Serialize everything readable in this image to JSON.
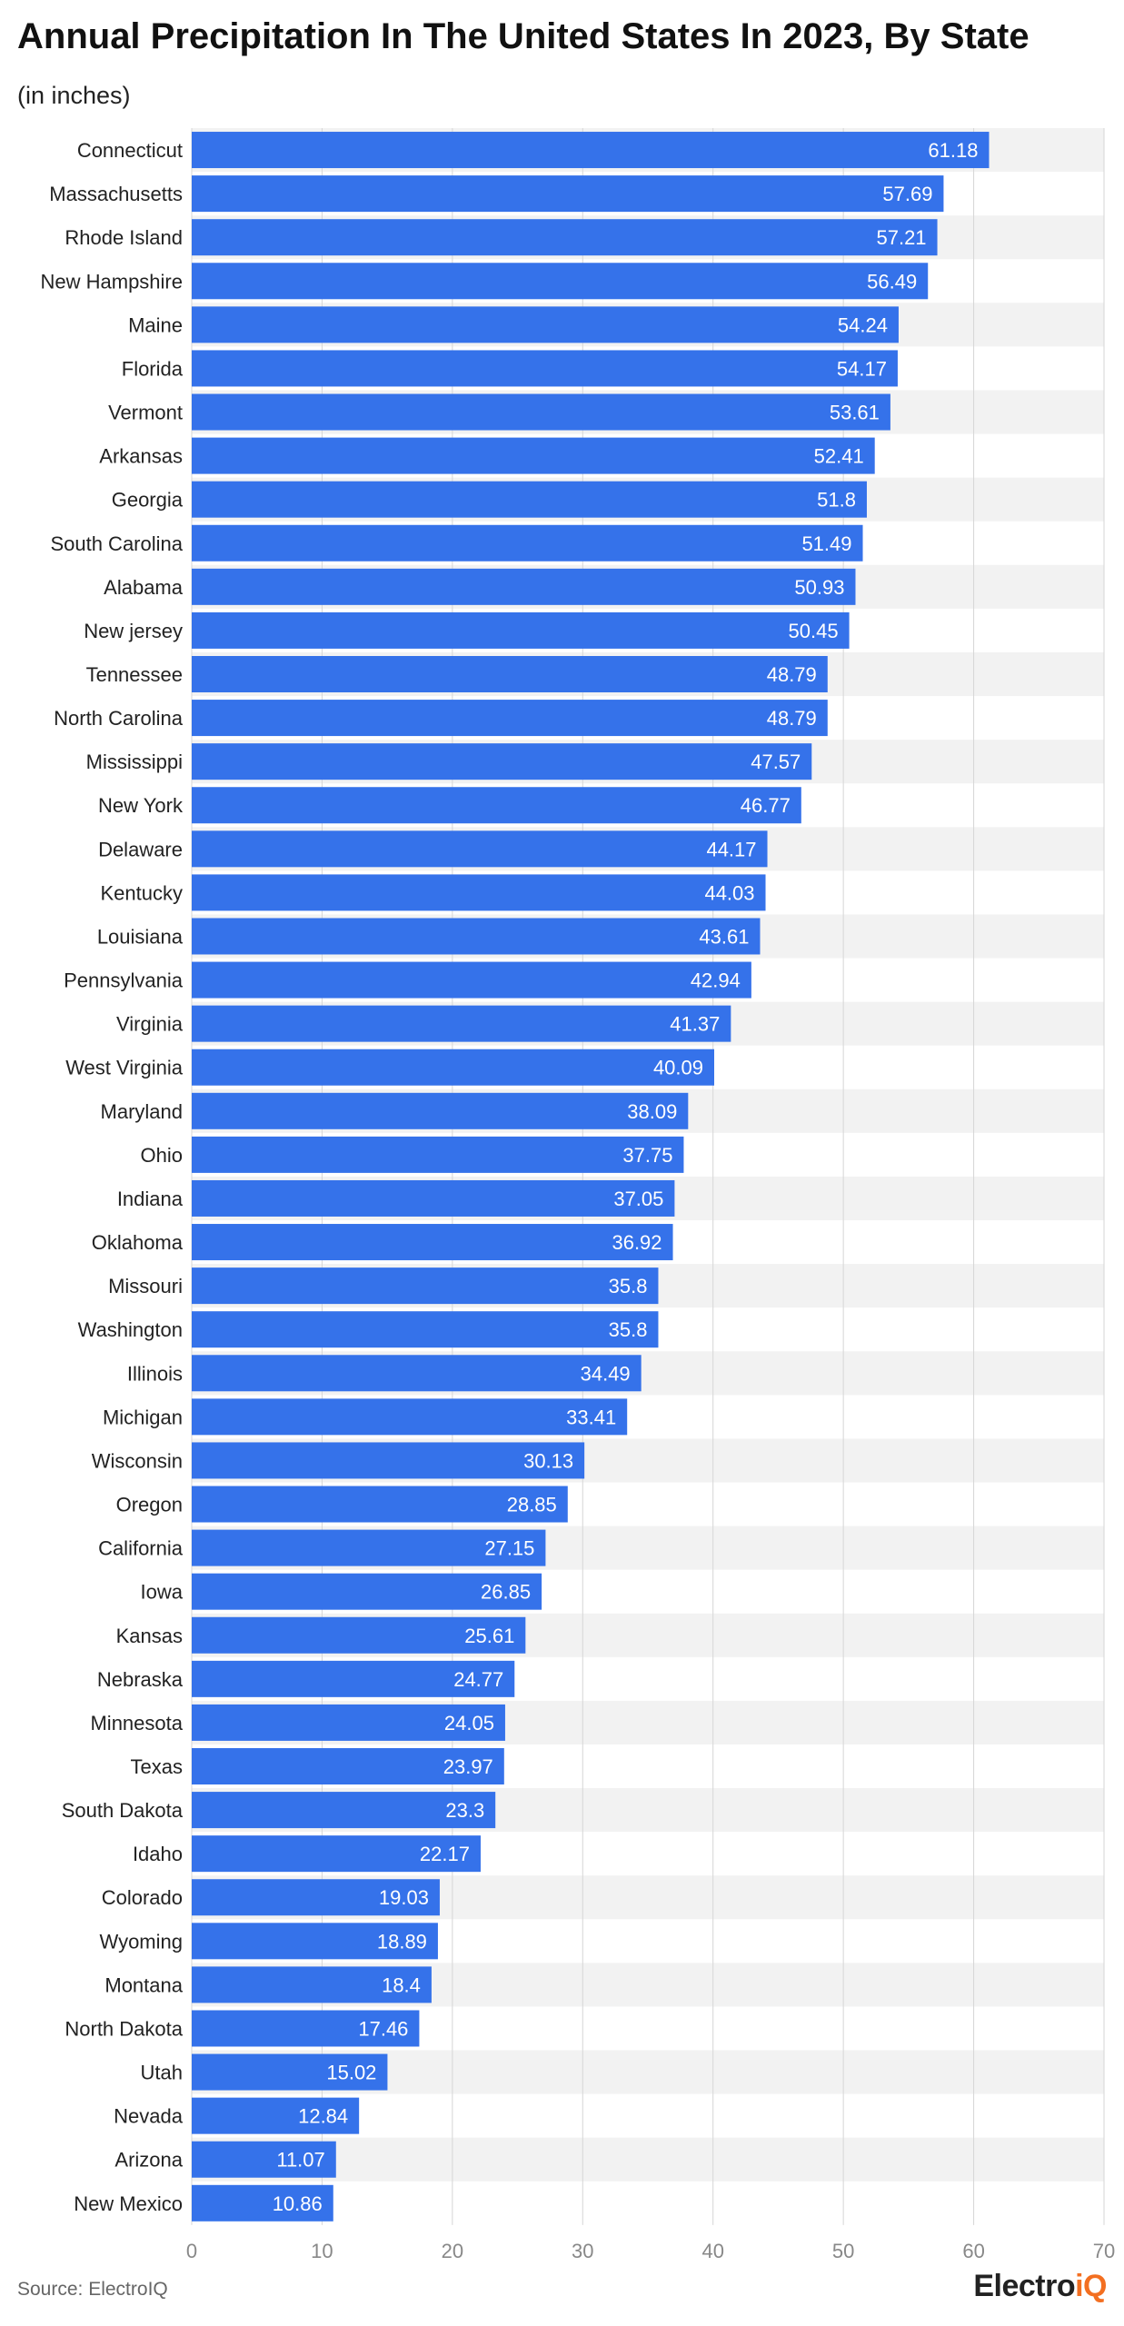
{
  "header": {
    "title": "Annual Precipitation In The United States In 2023, By State",
    "subtitle": "(in inches)"
  },
  "footer": {
    "source": "Source: ElectroIQ",
    "logo_main": "Electro",
    "logo_accent": "iQ"
  },
  "colors": {
    "bar": "#3572ea",
    "band": "#f2f2f2",
    "gridline": "#d6d6d6",
    "value_label": "#ffffff",
    "axis_label": "#888888",
    "logo_accent": "#f36f21"
  },
  "chart_data": {
    "type": "bar",
    "orientation": "horizontal",
    "title": "Annual Precipitation In The United States In 2023, By State",
    "subtitle": "(in inches)",
    "xlabel": "",
    "ylabel": "",
    "xlim": [
      0,
      70
    ],
    "xticks": [
      0,
      10,
      20,
      30,
      40,
      50,
      60,
      70
    ],
    "grid": true,
    "legend": "none",
    "categories": [
      "Connecticut",
      "Massachusetts",
      "Rhode Island",
      "New Hampshire",
      "Maine",
      "Florida",
      "Vermont",
      "Arkansas",
      "Georgia",
      "South Carolina",
      "Alabama",
      "New jersey",
      "Tennessee",
      "North Carolina",
      "Mississippi",
      "New York",
      "Delaware",
      "Kentucky",
      "Louisiana",
      "Pennsylvania",
      "Virginia",
      "West Virginia",
      "Maryland",
      "Ohio",
      "Indiana",
      "Oklahoma",
      "Missouri",
      "Washington",
      "Illinois",
      "Michigan",
      "Wisconsin",
      "Oregon",
      "California",
      "Iowa",
      "Kansas",
      "Nebraska",
      "Minnesota",
      "Texas",
      "South Dakota",
      "Idaho",
      "Colorado",
      "Wyoming",
      "Montana",
      "North Dakota",
      "Utah",
      "Nevada",
      "Arizona",
      "New Mexico"
    ],
    "values": [
      61.18,
      57.69,
      57.21,
      56.49,
      54.24,
      54.17,
      53.61,
      52.41,
      51.8,
      51.49,
      50.93,
      50.45,
      48.79,
      48.79,
      47.57,
      46.77,
      44.17,
      44.03,
      43.61,
      42.94,
      41.37,
      40.09,
      38.09,
      37.75,
      37.05,
      36.92,
      35.8,
      35.8,
      34.49,
      33.41,
      30.13,
      28.85,
      27.15,
      26.85,
      25.61,
      24.77,
      24.05,
      23.97,
      23.3,
      22.17,
      19.03,
      18.89,
      18.4,
      17.46,
      15.02,
      12.84,
      11.07,
      10.86
    ]
  }
}
